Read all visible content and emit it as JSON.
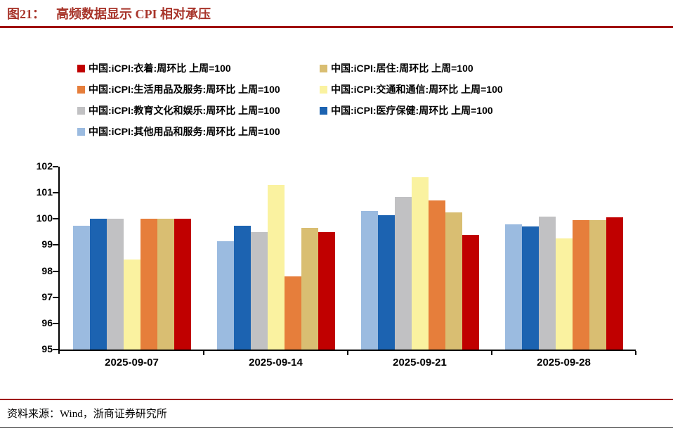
{
  "header": {
    "figure_label": "图21：",
    "title": "高频数据显示 CPI 相对承压"
  },
  "footer": {
    "source": "资料来源：Wind，浙商证券研究所"
  },
  "theme": {
    "accent_rule_color": "#A00000",
    "title_color": "#A8352B"
  },
  "chart_data": {
    "type": "bar",
    "title": "高频数据显示 CPI 相对承压",
    "categories": [
      "2025-09-07",
      "2025-09-14",
      "2025-09-21",
      "2025-09-28"
    ],
    "series": [
      {
        "key": "other-goods-services",
        "name": "中国:iCPI:其他用品和服务:周环比 上周=100",
        "color": "#9BBBE0",
        "values": [
          99.75,
          99.15,
          100.3,
          99.8
        ]
      },
      {
        "key": "healthcare",
        "name": "中国:iCPI:医疗保健:周环比 上周=100",
        "color": "#1C63B1",
        "values": [
          100.0,
          99.75,
          100.15,
          99.7
        ]
      },
      {
        "key": "education-culture-entertainment",
        "name": "中国:iCPI:教育文化和娱乐:周环比 上周=100",
        "color": "#C1C1C3",
        "values": [
          100.0,
          99.5,
          100.85,
          100.1
        ]
      },
      {
        "key": "transport-communication",
        "name": "中国:iCPI:交通和通信:周环比 上周=100",
        "color": "#FAF2A0",
        "values": [
          98.45,
          101.3,
          101.6,
          99.25
        ]
      },
      {
        "key": "household-goods-services",
        "name": "中国:iCPI:生活用品及服务:周环比 上周=100",
        "color": "#E67E3B",
        "values": [
          100.0,
          97.8,
          100.7,
          99.95
        ]
      },
      {
        "key": "housing",
        "name": "中国:iCPI:居住:周环比 上周=100",
        "color": "#D9BE72",
        "values": [
          100.0,
          99.65,
          100.25,
          99.95
        ]
      },
      {
        "key": "clothing",
        "name": "中国:iCPI:衣着:周环比 上周=100",
        "color": "#C00000",
        "values": [
          100.0,
          99.5,
          99.4,
          100.05
        ]
      }
    ],
    "legend_order": [
      6,
      5,
      4,
      3,
      2,
      1,
      0
    ],
    "ylim": [
      95,
      102
    ],
    "ytick_step": 1,
    "grid": false,
    "legend_position": "top-left"
  }
}
